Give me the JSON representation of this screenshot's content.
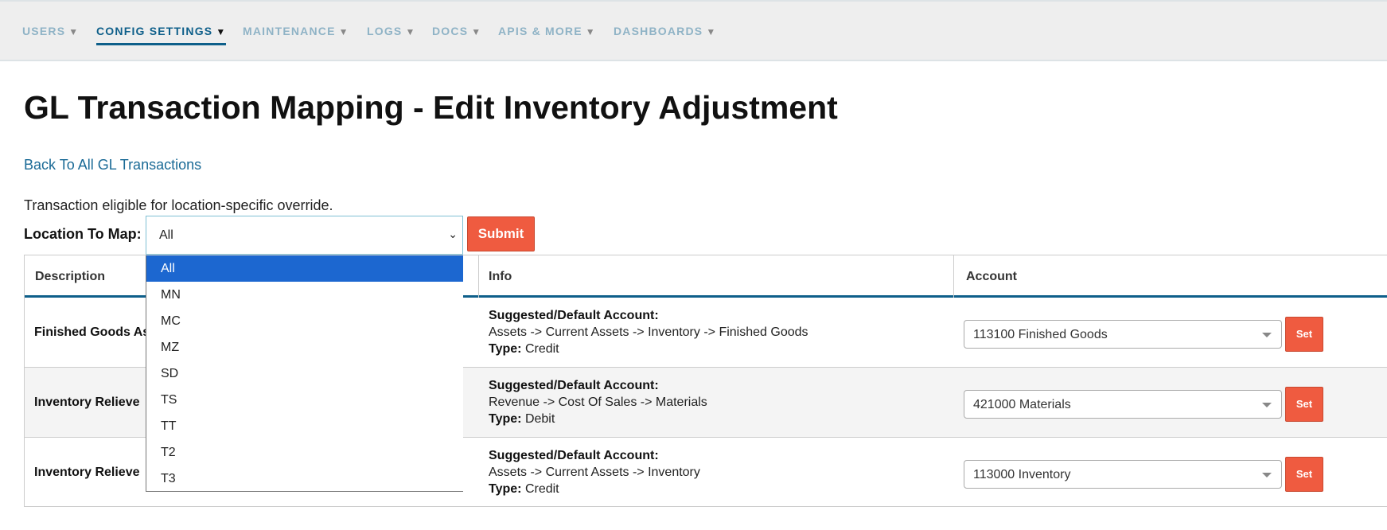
{
  "nav": {
    "items": [
      {
        "label": "USERS",
        "active": false
      },
      {
        "label": "CONFIG SETTINGS",
        "active": true
      },
      {
        "label": "MAINTENANCE",
        "active": false
      },
      {
        "label": "LOGS",
        "active": false
      },
      {
        "label": "DOCS",
        "active": false
      },
      {
        "label": "APIS & MORE",
        "active": false
      },
      {
        "label": "DASHBOARDS",
        "active": false
      }
    ],
    "caret": "▼"
  },
  "page": {
    "title": "GL Transaction Mapping - Edit Inventory Adjustment",
    "back_link": "Back To All GL Transactions",
    "eligibility": "Transaction eligible for location-specific override.",
    "location_label": "Location To Map:",
    "location_value": "All",
    "location_options": [
      "All",
      "MN",
      "MC",
      "MZ",
      "SD",
      "TS",
      "TT",
      "T2",
      "T3"
    ],
    "submit_label": "Submit"
  },
  "table": {
    "headers": [
      "Description",
      "Info",
      "Account"
    ],
    "rows": [
      {
        "description": "Finished Goods Asset",
        "suggested_label": "Suggested/Default Account:",
        "path": "Assets -> Current Assets -> Inventory -> Finished Goods",
        "type_label": "Type:",
        "type": "Credit",
        "account": "113100 Finished Goods",
        "set_label": "Set"
      },
      {
        "description": "Inventory Relieve",
        "suggested_label": "Suggested/Default Account:",
        "path": "Revenue -> Cost Of Sales -> Materials",
        "type_label": "Type:",
        "type": "Debit",
        "account": "421000 Materials",
        "set_label": "Set"
      },
      {
        "description": "Inventory Relieve",
        "suggested_label": "Suggested/Default Account:",
        "path": "Assets -> Current Assets -> Inventory",
        "type_label": "Type:",
        "type": "Credit",
        "account": "113000 Inventory",
        "set_label": "Set"
      }
    ]
  },
  "colors": {
    "accent": "#0e5f8a",
    "button": "#ef5b40",
    "selected_option": "#1c67d0"
  }
}
